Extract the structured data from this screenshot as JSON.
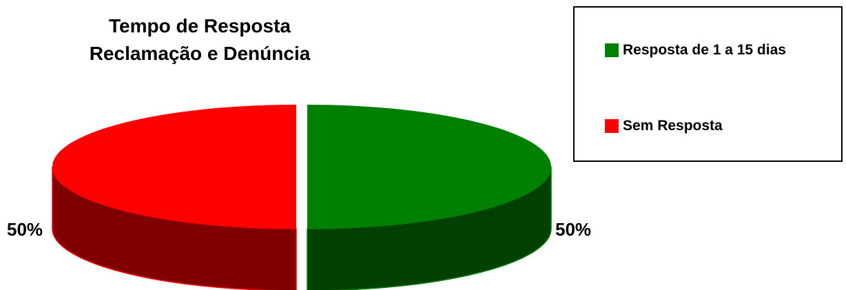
{
  "chart_data": {
    "type": "pie",
    "title": [
      "Tempo de Resposta",
      "Reclamação e Denúncia"
    ],
    "three_d": true,
    "legend_placement": "top-right",
    "slices": [
      {
        "name": "Resposta de 1 a 15 dias",
        "value": 50,
        "label": "50%",
        "color": "#008000",
        "side_color": "#004000"
      },
      {
        "name": "Sem Resposta",
        "value": 50,
        "label": "50%",
        "color": "#FF0000",
        "side_color": "#800000"
      }
    ]
  }
}
